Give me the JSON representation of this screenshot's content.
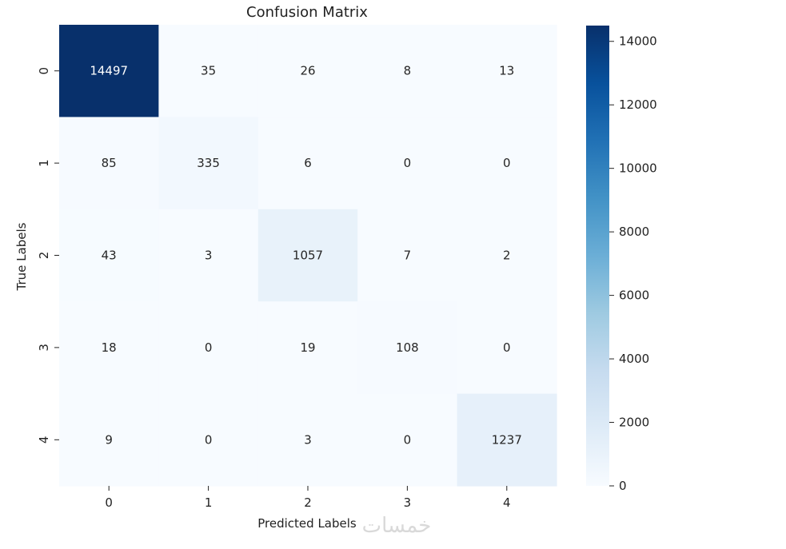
{
  "chart_data": {
    "type": "heatmap",
    "title": "Confusion Matrix",
    "xlabel": "Predicted Labels",
    "ylabel": "True Labels",
    "x_categories": [
      "0",
      "1",
      "2",
      "3",
      "4"
    ],
    "y_categories": [
      "0",
      "1",
      "2",
      "3",
      "4"
    ],
    "matrix": [
      [
        14497,
        35,
        26,
        8,
        13
      ],
      [
        85,
        335,
        6,
        0,
        0
      ],
      [
        43,
        3,
        1057,
        7,
        2
      ],
      [
        18,
        0,
        19,
        108,
        0
      ],
      [
        9,
        0,
        3,
        0,
        1237
      ]
    ],
    "colormap": "Blues",
    "color_range": [
      0,
      14497
    ],
    "colorbar_ticks": [
      0,
      2000,
      4000,
      6000,
      8000,
      10000,
      12000,
      14000
    ],
    "colorbar_tick_labels": [
      "0",
      "2000",
      "4000",
      "6000",
      "8000",
      "10000",
      "12000",
      "14000"
    ],
    "annotations": true,
    "grid": false
  },
  "watermark": {
    "text": "خمسات"
  }
}
